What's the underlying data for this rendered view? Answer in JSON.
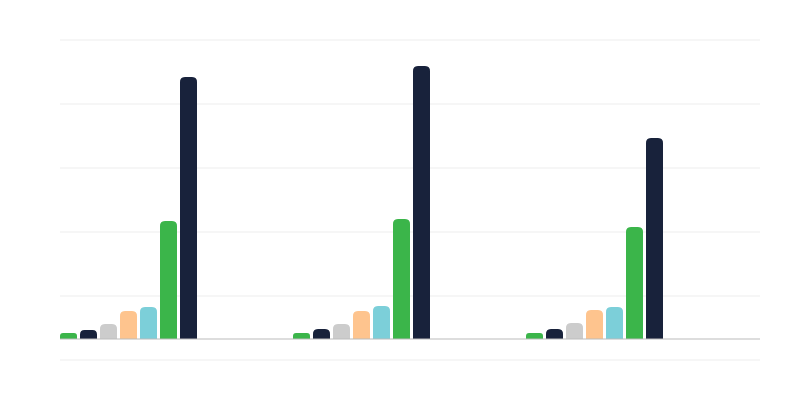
{
  "chart_data": {
    "type": "bar",
    "categories": [
      null,
      null,
      null
    ],
    "series": [
      {
        "color": "#3bb54a",
        "values": [
          6,
          6,
          6
        ]
      },
      {
        "color": "#18223b",
        "values": [
          9,
          10,
          10
        ]
      },
      {
        "color": "#cccccc",
        "values": [
          15,
          15,
          16
        ]
      },
      {
        "color": "#fec48e",
        "values": [
          28,
          28,
          29
        ]
      },
      {
        "color": "#7ccfd9",
        "values": [
          32,
          33,
          32
        ]
      },
      {
        "color": "#3bb54a",
        "values": [
          118,
          120,
          112
        ]
      },
      {
        "color": "#18223b",
        "values": [
          262,
          273,
          201
        ]
      }
    ],
    "ylim": [
      -21,
      299
    ],
    "yticks": [
      -21,
      43,
      107,
      171,
      235,
      299
    ],
    "grid": true
  }
}
